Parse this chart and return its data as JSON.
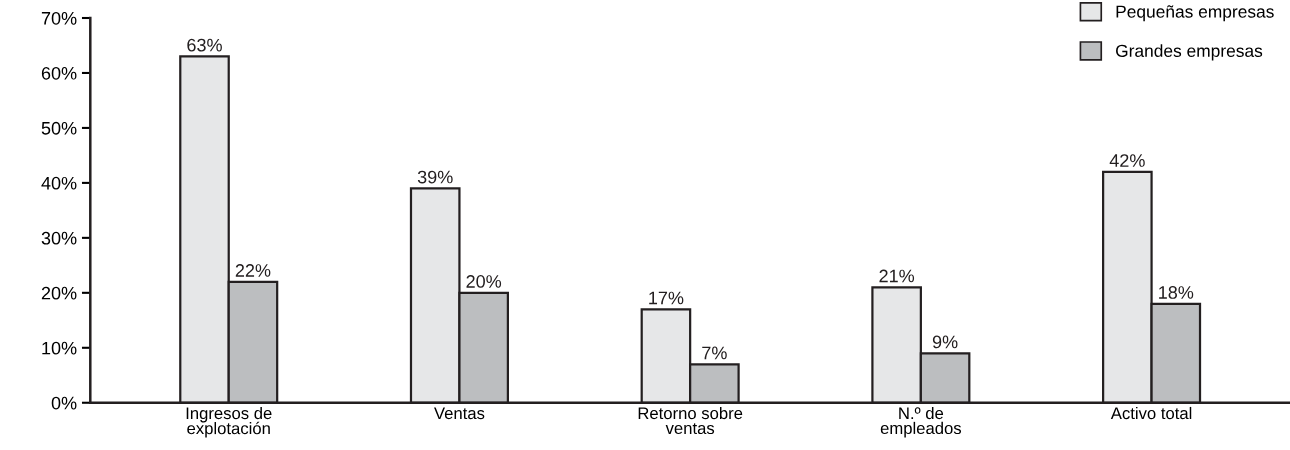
{
  "chart_data": {
    "type": "bar",
    "categories": [
      "Ingresos de\nexplotación",
      "Ventas",
      "Retorno sobre\nventas",
      "N.º de\nempleados",
      "Activo total"
    ],
    "series": [
      {
        "name": "Pequeñas empresas",
        "color": "#e6e7e8",
        "values": [
          63,
          39,
          17,
          21,
          42
        ]
      },
      {
        "name": "Grandes empresas",
        "color": "#bcbec0",
        "values": [
          22,
          20,
          7,
          9,
          18
        ]
      }
    ],
    "ylim": [
      0,
      70
    ],
    "yticks": [
      {
        "value": 0,
        "label": "0%"
      },
      {
        "value": 10,
        "label": "10%"
      },
      {
        "value": 20,
        "label": "20%"
      },
      {
        "value": 30,
        "label": "30%"
      },
      {
        "value": 40,
        "label": "40%"
      },
      {
        "value": 50,
        "label": "50%"
      },
      {
        "value": 60,
        "label": "60%"
      },
      {
        "value": 70,
        "label": "70%"
      }
    ],
    "value_labels": [
      [
        "63%",
        "39%",
        "17%",
        "21%",
        "42%"
      ],
      [
        "22%",
        "20%",
        "7%",
        "9%",
        "18%"
      ]
    ],
    "grid": false,
    "legend": "top right"
  }
}
